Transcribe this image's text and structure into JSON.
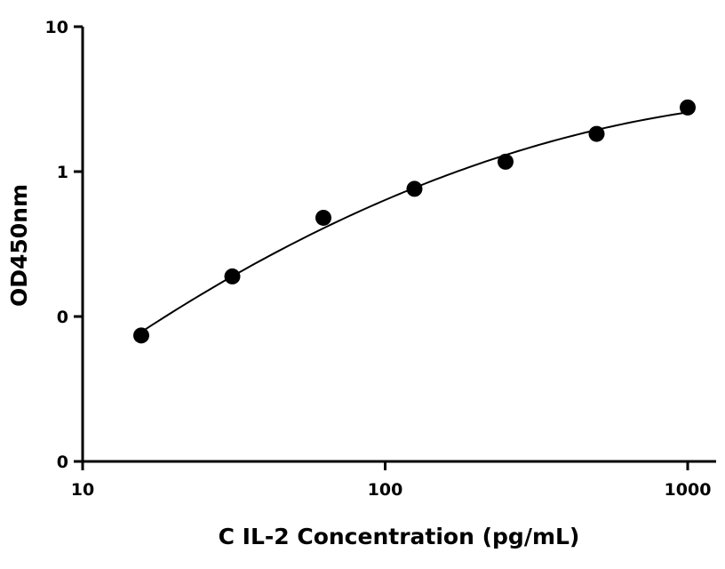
{
  "chart_data": {
    "type": "scatter",
    "title": "",
    "xlabel": "C IL-2 Concentration (pg/mL)",
    "ylabel": "OD450nm",
    "x_scale": "log",
    "y_scale": "log",
    "xlim": [
      10,
      1000
    ],
    "ylim": [
      0.01,
      10
    ],
    "x_ticks": [
      10,
      100,
      1000
    ],
    "x_tick_labels": [
      "10",
      "100",
      "1000"
    ],
    "y_ticks": [
      0.01,
      0.1,
      1,
      10
    ],
    "y_tick_labels": [
      "0",
      "0",
      "1",
      "10"
    ],
    "grid": false,
    "series": [
      {
        "x": [
          15.625,
          31.25,
          62.5,
          125,
          250,
          500,
          1000
        ],
        "y": [
          0.074,
          0.189,
          0.48,
          0.76,
          1.17,
          1.82,
          2.77
        ]
      }
    ],
    "fit_line": true
  }
}
